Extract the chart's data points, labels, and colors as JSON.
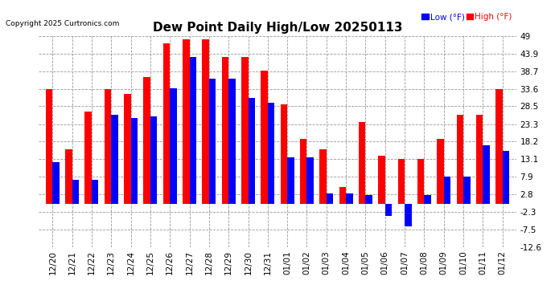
{
  "title": "Dew Point Daily High/Low 20250113",
  "copyright": "Copyright 2025 Curtronics.com",
  "legend_low": "Low (°F)",
  "legend_high": "High (°F)",
  "dates": [
    "12/20",
    "12/21",
    "12/22",
    "12/23",
    "12/24",
    "12/25",
    "12/26",
    "12/27",
    "12/28",
    "12/29",
    "12/30",
    "12/31",
    "01/01",
    "01/02",
    "01/03",
    "01/04",
    "01/05",
    "01/06",
    "01/07",
    "01/08",
    "01/09",
    "01/10",
    "01/11",
    "01/12"
  ],
  "high_values": [
    33.6,
    15.8,
    27.0,
    33.6,
    32.0,
    37.0,
    46.9,
    48.0,
    48.0,
    43.0,
    43.0,
    39.0,
    29.0,
    19.0,
    16.0,
    5.0,
    24.0,
    14.0,
    13.0,
    13.0,
    19.0,
    26.0,
    26.0,
    33.6
  ],
  "low_values": [
    12.2,
    7.0,
    7.0,
    26.0,
    25.0,
    25.5,
    33.8,
    43.0,
    36.5,
    36.5,
    31.0,
    29.5,
    13.5,
    13.5,
    3.0,
    3.0,
    2.5,
    -3.5,
    -6.5,
    2.5,
    8.0,
    8.0,
    17.0,
    15.5
  ],
  "high_color": "#ff0000",
  "low_color": "#0000ff",
  "background_color": "#ffffff",
  "grid_color": "#999999",
  "ylim": [
    -12.6,
    49.0
  ],
  "yticks": [
    -12.6,
    -7.5,
    -2.3,
    2.8,
    7.9,
    13.1,
    18.2,
    23.3,
    28.5,
    33.6,
    38.7,
    43.9,
    49.0
  ],
  "title_fontsize": 11,
  "axis_fontsize": 7.5,
  "bar_width": 0.35,
  "figsize": [
    6.9,
    3.75
  ],
  "dpi": 100
}
